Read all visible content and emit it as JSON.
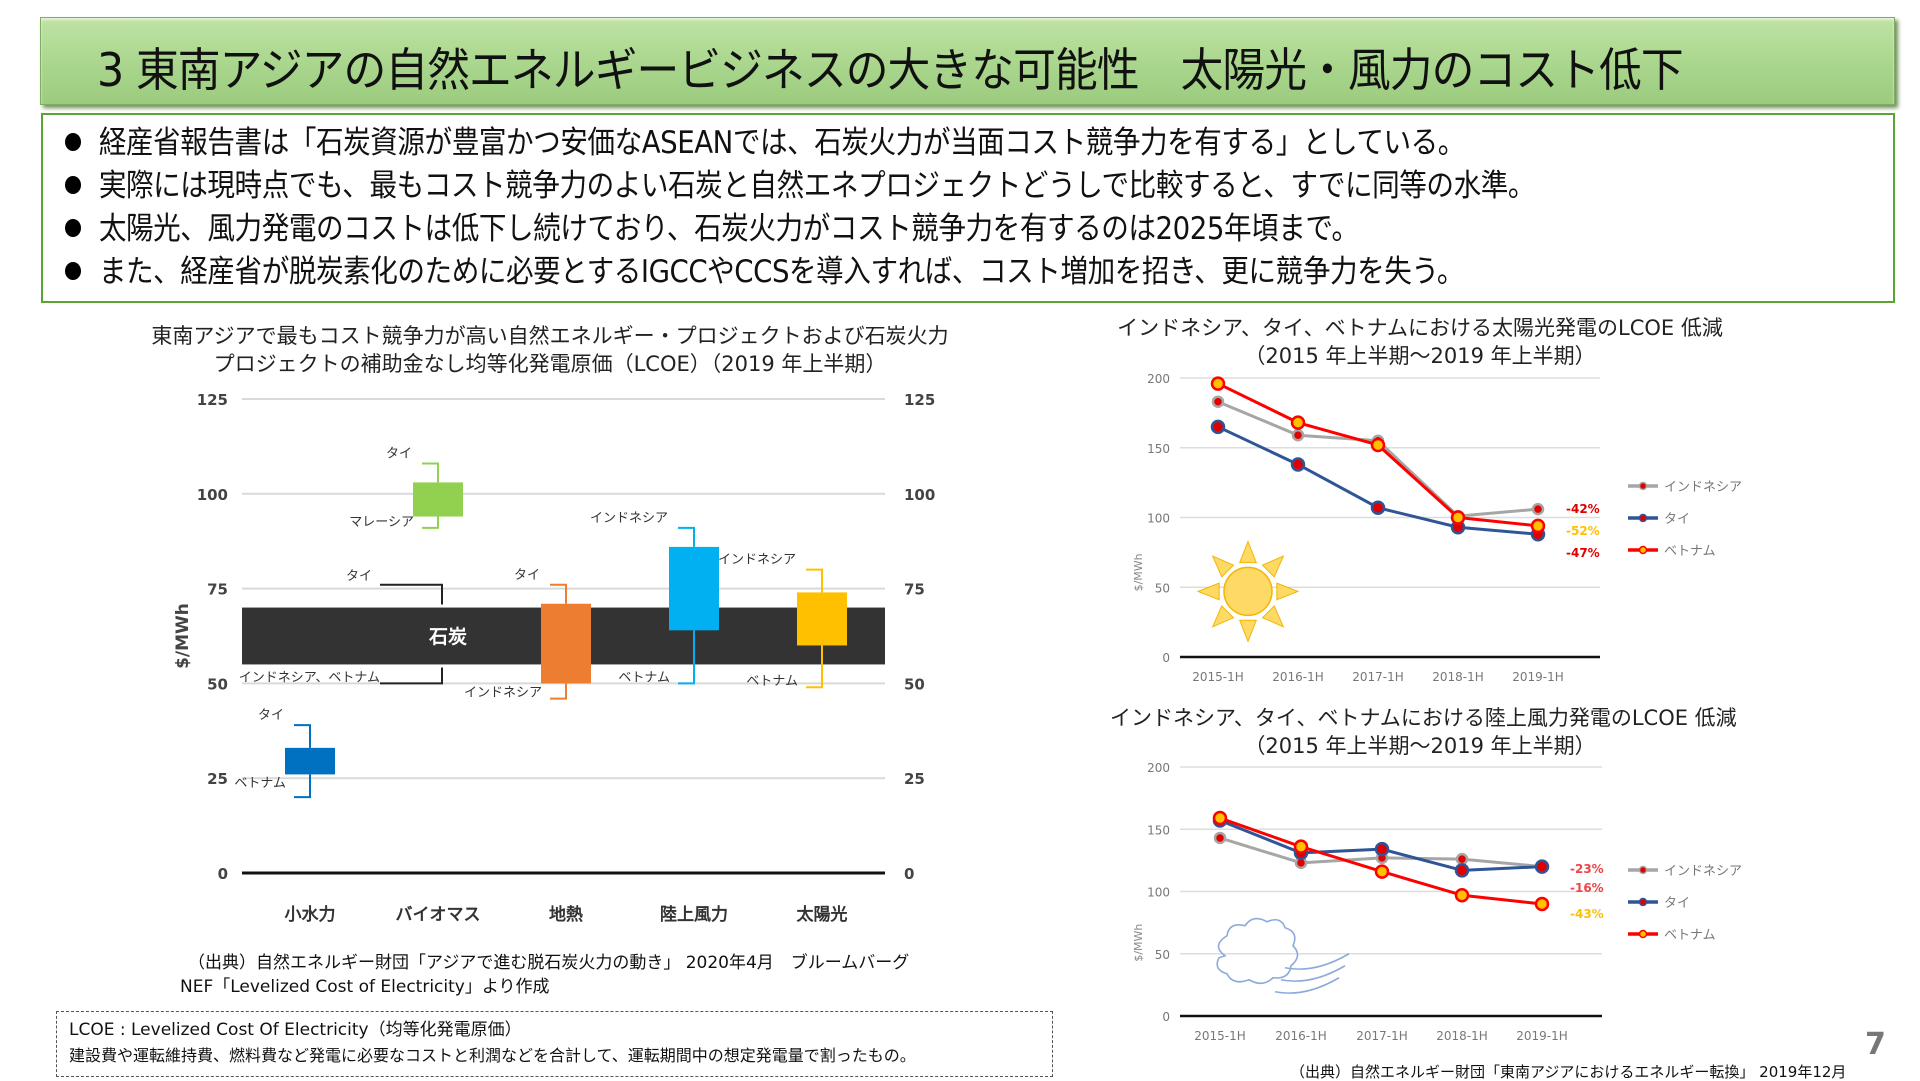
{
  "header": {
    "title": "3 東南アジアの自然エネルギービジネスの大きな可能性　太陽光・風力のコスト低下"
  },
  "bullets": [
    "経産省報告書は「石炭資源が豊富かつ安価なASEANでは、石炭火力が当面コスト競争力を有する」としている。",
    "実際には現時点でも、最もコスト競争力のよい石炭と自然エネプロジェクトどうしで比較すると、すでに同等の水準。",
    "太陽光、風力発電のコストは低下し続けており、石炭火力がコスト競争力を有するのは2025年頃まで。",
    "また、経産省が脱炭素化のために必要とするIGCCやCCSを導入すれば、コスト増加を招き、更に競争力を失う。"
  ],
  "colors": {
    "title_bg": "#a9d68c",
    "bullet_border": "#5ca532",
    "coal": "#333333",
    "hydro": "#0070c0",
    "biomass": "#92d050",
    "geothermal": "#ed7d31",
    "onshore_wind": "#00b0f0",
    "solar": "#ffc000",
    "indonesia_line": "#a6a6a6",
    "thai_line": "#2f5597",
    "vietnam_line": "#ff0000",
    "marker_red": "#e00000",
    "marker_yellow": "#ffc000"
  },
  "chart_data": [
    {
      "type": "bar",
      "subtype": "floating-range",
      "title": "東南アジアで最もコスト競争力が高い自然エネルギー・プロジェクトおよび石炭火力プロジェクトの補助金なし均等化発電原価（LCOE）（2019 年上半期）",
      "title_lines": [
        "東南アジアで最もコスト競争力が高い自然エネルギー・プロジェクトおよび石炭火力",
        "プロジェクトの補助金なし均等化発電原価（LCOE）（2019 年上半期）"
      ],
      "ylabel": "$/MWh",
      "ylim": [
        0,
        125
      ],
      "yticks": [
        0,
        25,
        50,
        75,
        100,
        125
      ],
      "grid": true,
      "categories": [
        "小水力",
        "バイオマス",
        "地熱",
        "陸上風力",
        "太陽光"
      ],
      "coal_band": {
        "label": "石炭",
        "low": 55,
        "high": 70,
        "high_label": "タイ",
        "low_label": "インドネシア、ベトナム",
        "high_whisker": 76,
        "low_whisker": 50
      },
      "ranges": [
        {
          "category": "小水力",
          "box_low": 26,
          "box_high": 33,
          "whisker_high": 39,
          "whisker_low": 20,
          "high_label": "タイ",
          "low_label": "ベトナム",
          "color_key": "hydro"
        },
        {
          "category": "バイオマス",
          "box_low": 94,
          "box_high": 103,
          "whisker_high": 108,
          "whisker_low": 91,
          "high_label": "タイ",
          "low_label": "マレーシア",
          "color_key": "biomass"
        },
        {
          "category": "地熱",
          "box_low": 50,
          "box_high": 71,
          "whisker_high": 76,
          "whisker_low": 46,
          "high_label": "タイ",
          "low_label": "インドネシア",
          "color_key": "geothermal"
        },
        {
          "category": "陸上風力",
          "box_low": 64,
          "box_high": 86,
          "whisker_high": 91,
          "whisker_low": 50,
          "high_label": "インドネシア",
          "low_label": "ベトナム",
          "color_key": "onshore_wind"
        },
        {
          "category": "太陽光",
          "box_low": 60,
          "box_high": 74,
          "whisker_high": 80,
          "whisker_low": 49,
          "high_label": "インドネシア",
          "low_label": "ベトナム",
          "color_key": "solar"
        }
      ]
    },
    {
      "type": "line",
      "title": "インドネシア、タイ、ベトナムにおける太陽光発電のLCOE 低減（2015 年上半期～2019 年上半期）",
      "title_lines": [
        "インドネシア、タイ、ベトナムにおける太陽光発電のLCOE 低減",
        "（2015 年上半期～2019 年上半期）"
      ],
      "ylabel": "$/MWh",
      "ylim": [
        0,
        200
      ],
      "yticks": [
        0,
        50,
        100,
        150,
        200
      ],
      "grid": true,
      "legend": "right",
      "x": [
        "2015-1H",
        "2016-1H",
        "2017-1H",
        "2018-1H",
        "2019-1H"
      ],
      "series": [
        {
          "name": "インドネシア",
          "values": [
            183,
            159,
            155,
            101,
            106
          ],
          "change": "-42%",
          "change_color": "#e00000",
          "line_key": "indonesia_line",
          "marker_key": "marker_red"
        },
        {
          "name": "タイ",
          "values": [
            165,
            138,
            107,
            93,
            88
          ],
          "change": "-47%",
          "change_color": "#e00000",
          "line_key": "thai_line",
          "marker_key": "marker_red"
        },
        {
          "name": "ベトナム",
          "values": [
            196,
            168,
            152,
            100,
            94
          ],
          "change": "-52%",
          "change_color": "#ffc000",
          "line_key": "vietnam_line",
          "marker_key": "marker_yellow"
        }
      ],
      "illustration": "sun-icon"
    },
    {
      "type": "line",
      "title": "インドネシア、タイ、ベトナムにおける陸上風力発電のLCOE 低減（2015 年上半期～2019 年上半期）",
      "title_lines": [
        "インドネシア、タイ、ベトナムにおける陸上風力発電のLCOE 低減",
        "（2015 年上半期～2019 年上半期）"
      ],
      "ylabel": "$/MWh",
      "ylim": [
        0,
        200
      ],
      "yticks": [
        0,
        50,
        100,
        150,
        200
      ],
      "grid": true,
      "legend": "right",
      "x": [
        "2015-1H",
        "2016-1H",
        "2017-1H",
        "2018-1H",
        "2019-1H"
      ],
      "series": [
        {
          "name": "インドネシア",
          "values": [
            143,
            123,
            127,
            126,
            120
          ],
          "change": "-16%",
          "change_color": "#ee4444",
          "line_key": "indonesia_line",
          "marker_key": "marker_red"
        },
        {
          "name": "タイ",
          "values": [
            157,
            131,
            134,
            117,
            120
          ],
          "change": "-23%",
          "change_color": "#ee4444",
          "line_key": "thai_line",
          "marker_key": "marker_red"
        },
        {
          "name": "ベトナム",
          "values": [
            159,
            136,
            116,
            97,
            90
          ],
          "change": "-43%",
          "change_color": "#ffc000",
          "line_key": "vietnam_line",
          "marker_key": "marker_yellow"
        }
      ],
      "illustration": "wind-cloud-icon"
    }
  ],
  "sources": {
    "left_line1": "（出典）自然エネルギー財団「アジアで進む脱石炭火力の動き」 2020年4月　ブルームバーグ",
    "left_line2": "NEF「Levelized Cost of Electricity」より作成",
    "right": "（出典）自然エネルギー財団「東南アジアにおけるエネルギー転換」 2019年12月"
  },
  "lcoe_note": {
    "line1": "LCOE : Levelized Cost Of Electricity（均等化発電原価）",
    "line2": "建設費や運転維持費、燃料費など発電に必要なコストと利潤などを合計して、運転期間中の想定発電量で割ったもの。"
  },
  "page_number": "7"
}
